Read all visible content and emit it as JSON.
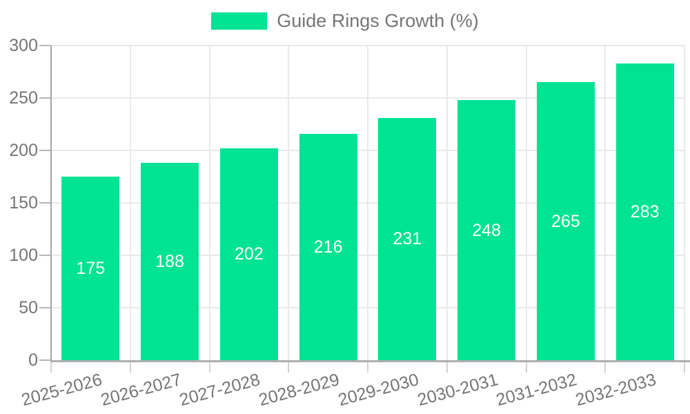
{
  "chart_data": {
    "type": "bar",
    "legend": {
      "label": "Guide Rings Growth (%)",
      "position": "top-center"
    },
    "categories": [
      "2025-2026",
      "2026-2027",
      "2027-2028",
      "2028-2029",
      "2029-2030",
      "2030-2031",
      "2031-2032",
      "2032-2033"
    ],
    "series": [
      {
        "name": "Guide Rings Growth (%)",
        "values": [
          175,
          188,
          202,
          216,
          231,
          248,
          265,
          283
        ]
      }
    ],
    "ylim": [
      0,
      300
    ],
    "yticks": [
      0,
      50,
      100,
      150,
      200,
      250,
      300
    ],
    "grid": true,
    "x_label_rotation_deg": -15,
    "data_label_position": "center",
    "colors": {
      "bar": "#00e294",
      "data_label": "#ffffff",
      "axis_label": "#757575",
      "legend_text": "#757575",
      "axis_line": "#aeaeae",
      "gridline": "#e9e9e9"
    }
  }
}
